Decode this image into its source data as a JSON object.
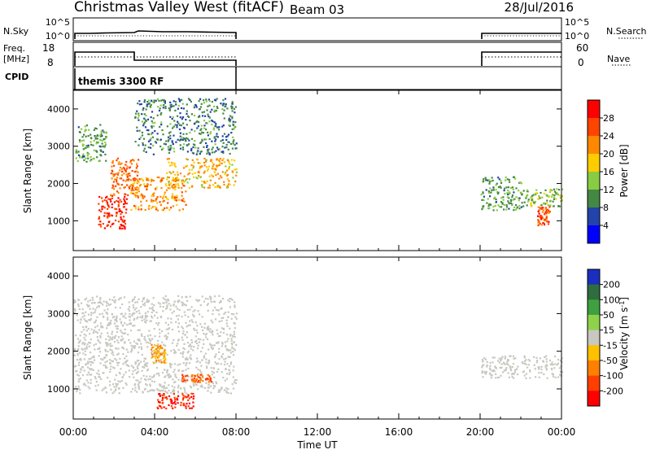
{
  "header": {
    "title": "Christmas Valley West (fitACF)",
    "beam": "Beam 03",
    "date": "28/Jul/2016"
  },
  "top_panels": {
    "nsky": {
      "label": "N.Sky",
      "ticks": [
        "10^5",
        "10^0"
      ]
    },
    "nsearch": {
      "label": "N.Search",
      "ticks": [
        "10^5",
        "10^0"
      ]
    },
    "freq": {
      "label_line1": "Freq.",
      "label_line2": "[MHz]",
      "ticks": [
        "18",
        "8"
      ]
    },
    "nave": {
      "label": "Nave",
      "ticks": [
        "60",
        "0"
      ]
    },
    "cpid": {
      "label": "CPID",
      "program": "themis 3300 RF"
    }
  },
  "power_panel": {
    "ylabel": "Slant Range [km]",
    "yticks": [
      "4000",
      "3000",
      "2000",
      "1000"
    ],
    "colorbar": {
      "label": "Power [dB]",
      "ticks": [
        "28",
        "24",
        "20",
        "16",
        "12",
        "8",
        "4"
      ],
      "colors": [
        "#ff0000",
        "#ff4400",
        "#ff8800",
        "#ffcc00",
        "#88cc44",
        "#448844",
        "#2244aa",
        "#0000ff"
      ]
    }
  },
  "velocity_panel": {
    "ylabel": "Slant Range [km]",
    "yticks": [
      "4000",
      "3000",
      "2000",
      "1000"
    ],
    "colorbar": {
      "label": "Velocity [m s",
      "label_sup": "-1",
      "label_end": "]",
      "ticks": [
        "200",
        "100",
        "50",
        "15",
        "-15",
        "-50",
        "-100",
        "-200"
      ],
      "colors": [
        "#1a2fbf",
        "#2f6d3f",
        "#3fa03f",
        "#8fd24a",
        "#c8c8c0",
        "#ffc000",
        "#ff7f00",
        "#ff3f00",
        "#ff0000"
      ]
    }
  },
  "x_axis": {
    "label": "Time UT",
    "ticks": [
      "00:00",
      "04:00",
      "08:00",
      "12:00",
      "16:00",
      "20:00",
      "00:00"
    ]
  },
  "chart_data": {
    "type": "heatmap",
    "title": "Christmas Valley West (fitACF)",
    "x_unit": "hours UT",
    "xlim": [
      0,
      24
    ],
    "ylim": [
      200,
      4500
    ],
    "data_gap_hours": [
      8,
      20
    ],
    "freq_segments_MHz": [
      {
        "start": 0,
        "end": 3,
        "value": 14
      },
      {
        "start": 3,
        "end": 8,
        "value": 10.5
      },
      {
        "start": 20,
        "end": 24,
        "value": 14
      }
    ],
    "power_regions": [
      {
        "t": [
          0.1,
          1.6
        ],
        "range_km": [
          2600,
          3600
        ],
        "power_dB": 10
      },
      {
        "t": [
          1.2,
          2.6
        ],
        "range_km": [
          800,
          1700
        ],
        "power_dB": 26
      },
      {
        "t": [
          1.8,
          3.2
        ],
        "range_km": [
          1700,
          2700
        ],
        "power_dB": 22
      },
      {
        "t": [
          2.8,
          5.5
        ],
        "range_km": [
          1300,
          2200
        ],
        "power_dB": 20
      },
      {
        "t": [
          4.5,
          8.0
        ],
        "range_km": [
          1900,
          2700
        ],
        "power_dB": 18
      },
      {
        "t": [
          3.0,
          8.0
        ],
        "range_km": [
          2800,
          4300
        ],
        "power_dB": 8
      },
      {
        "t": [
          20.0,
          22.0
        ],
        "range_km": [
          1300,
          2200
        ],
        "power_dB": 10
      },
      {
        "t": [
          22.0,
          24.0
        ],
        "range_km": [
          1400,
          1900
        ],
        "power_dB": 12
      },
      {
        "t": [
          22.8,
          23.4
        ],
        "range_km": [
          900,
          1400
        ],
        "power_dB": 24
      }
    ],
    "velocity_regions": [
      {
        "t": [
          0.0,
          8.0
        ],
        "range_km": [
          900,
          3500
        ],
        "velocity_ms": 0
      },
      {
        "t": [
          3.8,
          4.5
        ],
        "range_km": [
          1700,
          2200
        ],
        "velocity_ms": -50
      },
      {
        "t": [
          4.1,
          5.9
        ],
        "range_km": [
          500,
          900
        ],
        "velocity_ms": -200
      },
      {
        "t": [
          5.3,
          6.8
        ],
        "range_km": [
          1200,
          1400
        ],
        "velocity_ms": -100
      },
      {
        "t": [
          20.0,
          24.0
        ],
        "range_km": [
          1300,
          1900
        ],
        "velocity_ms": 0
      }
    ]
  }
}
